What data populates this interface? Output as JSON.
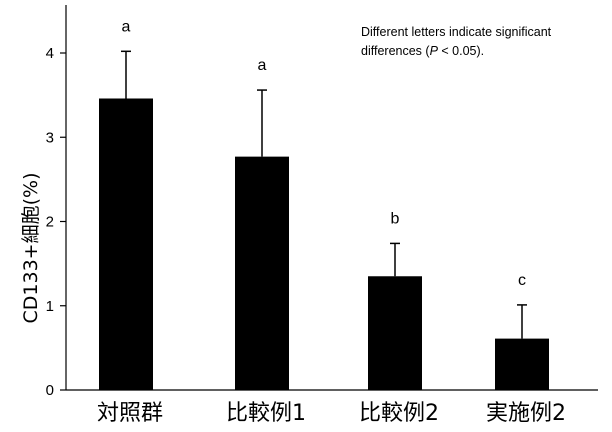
{
  "chart_data": {
    "type": "bar",
    "categories": [
      "対照群",
      "比較例1",
      "比較例2",
      "実施例2"
    ],
    "values": [
      3.46,
      2.77,
      1.35,
      0.61
    ],
    "errors": [
      0.56,
      0.79,
      0.39,
      0.4
    ],
    "significance_letters": [
      "a",
      "a",
      "b",
      "c"
    ],
    "ylabel": "CD133+細胞(%)",
    "xlabel": "",
    "ylim": [
      0,
      4.5
    ],
    "yticks": [
      0,
      1,
      2,
      3,
      4
    ],
    "annotation": {
      "line1": "Different letters indicate significant",
      "line2_prefix": "differences (",
      "line2_p": "P",
      "line2_suffix": " < 0.05)."
    },
    "bar_color": "#000000",
    "grid": false,
    "legend": "none"
  }
}
